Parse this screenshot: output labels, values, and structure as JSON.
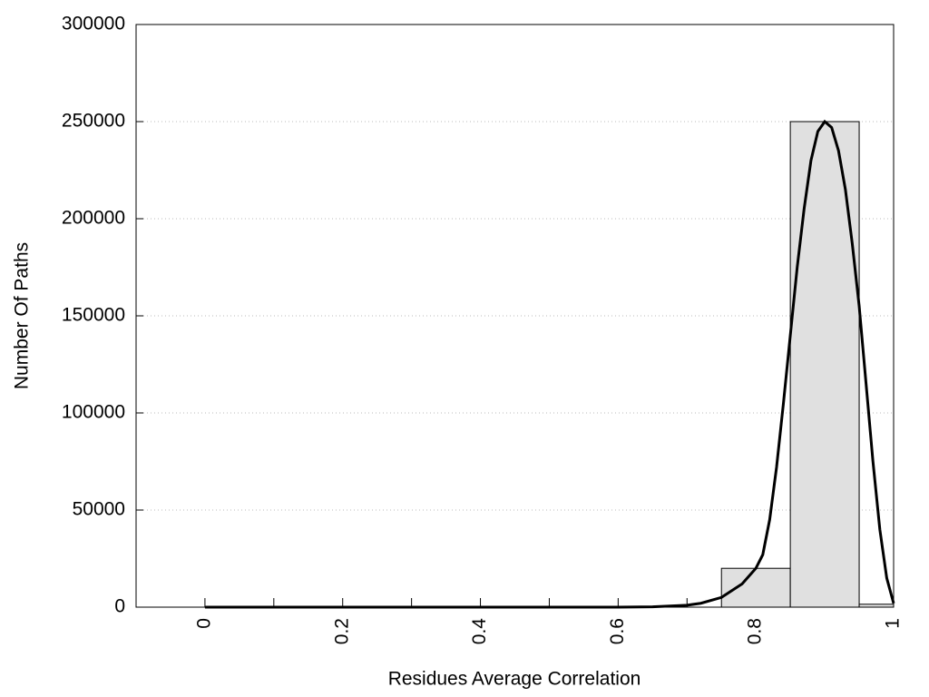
{
  "chart_data": {
    "type": "histogram",
    "xlabel": "Residues Average Correlation",
    "ylabel": "Number Of Paths",
    "bins": [
      0.75,
      0.85,
      0.95,
      1.0
    ],
    "counts": [
      20000,
      250000,
      1500
    ],
    "color": "#e0e0e0",
    "curve": {
      "color": "#000000",
      "x": [
        0,
        0.1,
        0.2,
        0.3,
        0.4,
        0.5,
        0.6,
        0.65,
        0.7,
        0.72,
        0.75,
        0.78,
        0.8,
        0.81,
        0.82,
        0.83,
        0.84,
        0.85,
        0.86,
        0.87,
        0.88,
        0.89,
        0.9,
        0.91,
        0.92,
        0.93,
        0.94,
        0.95,
        0.96,
        0.97,
        0.98,
        0.99,
        1.0
      ],
      "values": [
        0,
        0,
        0,
        0,
        0,
        0,
        0,
        200,
        1000,
        2000,
        5000,
        12000,
        20000,
        27000,
        45000,
        72000,
        105000,
        140000,
        175000,
        205000,
        230000,
        245000,
        250000,
        247000,
        235000,
        215000,
        187000,
        155000,
        115000,
        75000,
        40000,
        15000,
        2000
      ]
    },
    "xlim": [
      -0.1,
      1
    ],
    "xticks": [
      0,
      0.2,
      0.4,
      0.6,
      0.8,
      1
    ],
    "xminorticks": [
      0.1,
      0.3,
      0.5,
      0.7,
      0.9
    ],
    "ylim": [
      0,
      300000
    ],
    "yticks": [
      0,
      50000,
      100000,
      150000,
      200000,
      250000,
      300000
    ],
    "grid": true
  }
}
